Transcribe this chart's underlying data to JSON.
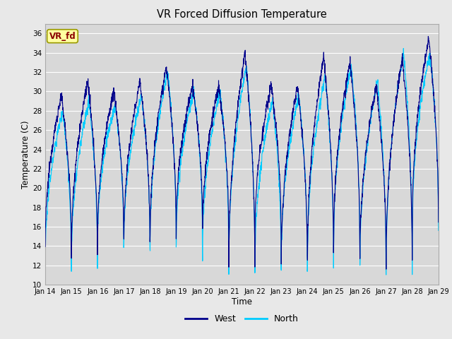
{
  "title": "VR Forced Diffusion Temperature",
  "xlabel": "Time",
  "ylabel": "Temperature (C)",
  "ylim": [
    10,
    37
  ],
  "yticks": [
    10,
    12,
    14,
    16,
    18,
    20,
    22,
    24,
    26,
    28,
    30,
    32,
    34,
    36
  ],
  "west_color": "#00008B",
  "north_color": "#00CCFF",
  "bg_color": "#E8E8E8",
  "plot_bg_color": "#D8D8D8",
  "annotation_text": "VR_fd",
  "annotation_bg": "#FFFFA0",
  "annotation_fg": "#8B0000",
  "legend_west": "West",
  "legend_north": "North",
  "n_days": 15,
  "start_day": 14,
  "samples_per_day": 144,
  "day_peaks_west": [
    29.5,
    31.0,
    30.0,
    31.0,
    32.5,
    30.5,
    30.5,
    34.0,
    30.5,
    30.5,
    33.5,
    33.0,
    30.5,
    33.5,
    35.5
  ],
  "day_peaks_north": [
    28.0,
    29.0,
    28.5,
    29.5,
    32.0,
    30.0,
    30.0,
    32.5,
    29.0,
    29.5,
    31.5,
    32.5,
    31.0,
    34.0,
    34.0
  ],
  "day_nights_west": [
    14.0,
    13.0,
    15.0,
    14.5,
    15.0,
    16.5,
    15.5,
    12.0,
    15.5,
    12.5,
    13.0,
    14.5,
    13.0,
    12.5,
    16.5
  ],
  "day_nights_north": [
    11.5,
    11.5,
    14.0,
    13.5,
    13.5,
    14.0,
    12.5,
    11.0,
    11.5,
    11.5,
    11.5,
    13.5,
    11.0,
    11.0,
    15.0
  ]
}
